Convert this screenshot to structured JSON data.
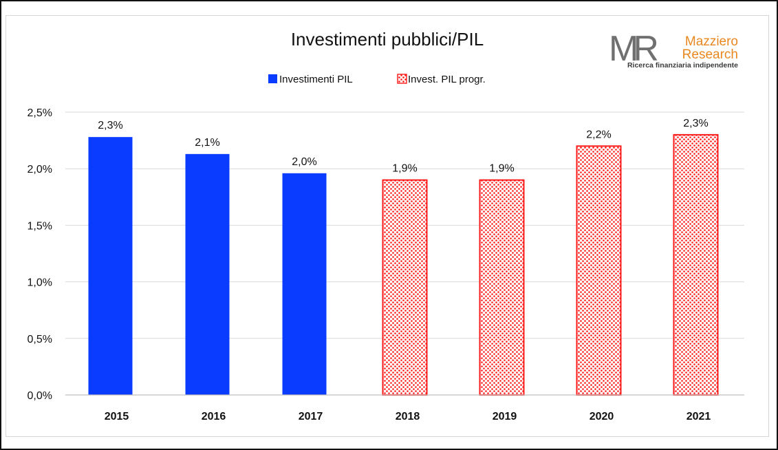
{
  "logo": {
    "monogram": "MR",
    "name_line1": "Mazziero",
    "name_line2": "Research",
    "tagline": "Ricerca finanziaria indipendente"
  },
  "colors": {
    "actual": "#0a3cff",
    "planned": "#ff1a1a",
    "gridline": "#d9d9d9",
    "axis": "#bfbfbf"
  },
  "chart_data": {
    "type": "bar",
    "title": "Investimenti pubblici/PIL",
    "xlabel": "",
    "ylabel": "",
    "ylim": [
      0,
      2.5
    ],
    "yticks": [
      0,
      0.5,
      1.0,
      1.5,
      2.0,
      2.5
    ],
    "ytick_labels": [
      "0,0%",
      "0,5%",
      "1,0%",
      "1,5%",
      "2,0%",
      "2,5%"
    ],
    "categories": [
      "2015",
      "2016",
      "2017",
      "2018",
      "2019",
      "2020",
      "2021"
    ],
    "grid": true,
    "legend_position": "top-center",
    "series": [
      {
        "name": "Investimenti PIL",
        "style": "solid",
        "values": [
          2.28,
          2.13,
          1.96,
          null,
          null,
          null,
          null
        ],
        "labels": [
          "2,3%",
          "2,1%",
          "2,0%",
          null,
          null,
          null,
          null
        ]
      },
      {
        "name": "Invest. PIL progr.",
        "style": "dotted-pattern",
        "values": [
          null,
          null,
          null,
          1.9,
          1.9,
          2.2,
          2.3
        ],
        "labels": [
          null,
          null,
          null,
          "1,9%",
          "1,9%",
          "2,2%",
          "2,3%"
        ]
      }
    ]
  }
}
